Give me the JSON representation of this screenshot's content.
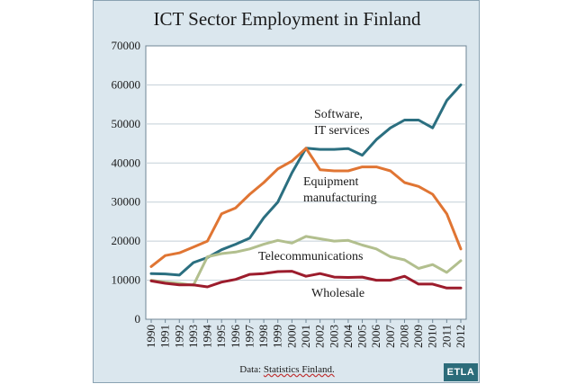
{
  "chart_data": {
    "type": "line",
    "title": "ICT Sector Employment in Finland",
    "source_label": "Data:",
    "source_name": "Statistics Finland.",
    "logo_text": "ETLA",
    "x": [
      "1990",
      "1991",
      "1992",
      "1993",
      "1994",
      "1995",
      "1996",
      "1997",
      "1998",
      "1999",
      "2000",
      "2001",
      "2002",
      "2003",
      "2004",
      "2005",
      "2006",
      "2007",
      "2008",
      "2009",
      "2010",
      "2011",
      "2012"
    ],
    "ylim": [
      0,
      70000
    ],
    "yticks": [
      0,
      10000,
      20000,
      30000,
      40000,
      50000,
      60000,
      70000
    ],
    "grid": true,
    "series": [
      {
        "name": "Software, IT services",
        "label_lines": [
          "Software,",
          "IT services"
        ],
        "color": "#2b6f80",
        "values": [
          11700,
          11600,
          11300,
          14500,
          15800,
          17800,
          19200,
          20800,
          26000,
          30000,
          37500,
          43800,
          43500,
          43500,
          43700,
          42000,
          46000,
          49000,
          51000,
          51000,
          49000,
          56000,
          60000
        ]
      },
      {
        "name": "Equipment manufacturing",
        "label_lines": [
          "Equipment",
          "manufacturing"
        ],
        "color": "#e07533",
        "values": [
          13500,
          16300,
          17000,
          18500,
          20000,
          27000,
          28500,
          32000,
          35000,
          38500,
          40500,
          43800,
          38300,
          38000,
          38000,
          39000,
          39000,
          38000,
          35000,
          34000,
          32000,
          27000,
          18000
        ]
      },
      {
        "name": "Telecommunications",
        "label_lines": [
          "Telecommunications"
        ],
        "color": "#b2bf8e",
        "values": [
          10000,
          9500,
          9200,
          8700,
          16000,
          16800,
          17200,
          18000,
          19200,
          20200,
          19500,
          21200,
          20600,
          20000,
          20200,
          19000,
          18000,
          16000,
          15200,
          13000,
          14000,
          12000,
          15000
        ]
      },
      {
        "name": "Wholesale",
        "label_lines": [
          "Wholesale"
        ],
        "color": "#9c1c2c",
        "values": [
          9800,
          9200,
          8800,
          8800,
          8300,
          9500,
          10200,
          11500,
          11700,
          12200,
          12300,
          11000,
          11700,
          10800,
          10700,
          10800,
          10000,
          10000,
          11000,
          9000,
          9000,
          8000,
          8000
        ]
      }
    ]
  }
}
